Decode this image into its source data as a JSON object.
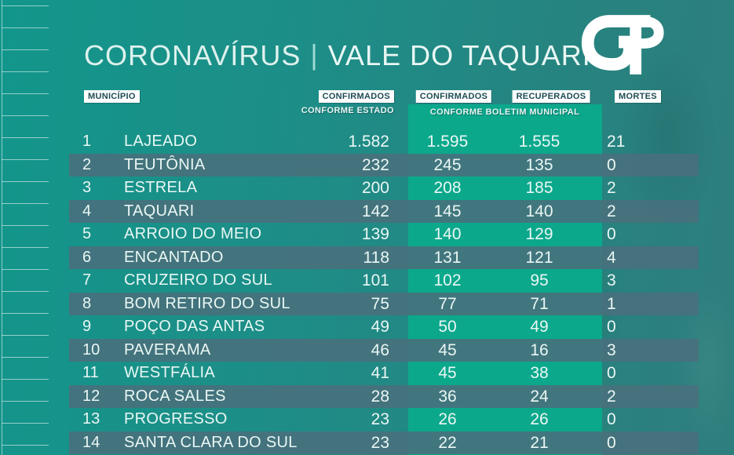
{
  "header": {
    "title_part1": "CORONAVÍRUS",
    "title_separator": "|",
    "title_part2": "VALE DO TAQUARI",
    "logo_text": "GP"
  },
  "table": {
    "col_municipio": "MUNICÍPIO",
    "col_confirmados_estado": "CONFIRMADOS",
    "sub_confirmados_estado": "CONFORME ESTADO",
    "col_confirmados_municipal": "CONFIRMADOS",
    "col_recuperados": "RECUPERADOS",
    "sub_boletim_municipal": "CONFORME BOLETIM MUNICIPAL",
    "col_mortes": "MORTES",
    "rows": [
      {
        "rank": "1",
        "municipio": "LAJEADO",
        "confirmados_estado": "1.582",
        "confirmados_municipal": "1.595",
        "recuperados": "1.555",
        "mortes": "21"
      },
      {
        "rank": "2",
        "municipio": "TEUTÔNIA",
        "confirmados_estado": "232",
        "confirmados_municipal": "245",
        "recuperados": "135",
        "mortes": "0"
      },
      {
        "rank": "3",
        "municipio": "ESTRELA",
        "confirmados_estado": "200",
        "confirmados_municipal": "208",
        "recuperados": "185",
        "mortes": "2"
      },
      {
        "rank": "4",
        "municipio": "TAQUARI",
        "confirmados_estado": "142",
        "confirmados_municipal": "145",
        "recuperados": "140",
        "mortes": "2"
      },
      {
        "rank": "5",
        "municipio": "ARROIO DO MEIO",
        "confirmados_estado": "139",
        "confirmados_municipal": "140",
        "recuperados": "129",
        "mortes": "0"
      },
      {
        "rank": "6",
        "municipio": "ENCANTADO",
        "confirmados_estado": "118",
        "confirmados_municipal": "131",
        "recuperados": "121",
        "mortes": "4"
      },
      {
        "rank": "7",
        "municipio": "CRUZEIRO DO SUL",
        "confirmados_estado": "101",
        "confirmados_municipal": "102",
        "recuperados": "95",
        "mortes": "3"
      },
      {
        "rank": "8",
        "municipio": "BOM RETIRO DO SUL",
        "confirmados_estado": "75",
        "confirmados_municipal": "77",
        "recuperados": "71",
        "mortes": "1"
      },
      {
        "rank": "9",
        "municipio": "POÇO DAS ANTAS",
        "confirmados_estado": "49",
        "confirmados_municipal": "50",
        "recuperados": "49",
        "mortes": "0"
      },
      {
        "rank": "10",
        "municipio": "PAVERAMA",
        "confirmados_estado": "46",
        "confirmados_municipal": "45",
        "recuperados": "16",
        "mortes": "3"
      },
      {
        "rank": "11",
        "municipio": "WESTFÁLIA",
        "confirmados_estado": "41",
        "confirmados_municipal": "45",
        "recuperados": "38",
        "mortes": "0"
      },
      {
        "rank": "12",
        "municipio": "ROCA SALES",
        "confirmados_estado": "28",
        "confirmados_municipal": "36",
        "recuperados": "24",
        "mortes": "2"
      },
      {
        "rank": "13",
        "municipio": "PROGRESSO",
        "confirmados_estado": "23",
        "confirmados_municipal": "26",
        "recuperados": "26",
        "mortes": "0"
      },
      {
        "rank": "14",
        "municipio": "SANTA CLARA DO SUL",
        "confirmados_estado": "23",
        "confirmados_municipal": "22",
        "recuperados": "21",
        "mortes": "0"
      }
    ]
  },
  "colors": {
    "background": "#1E8D87",
    "background_left": "#12968B",
    "background_right": "#2E7E7D",
    "municipal_band": "#0BA88C",
    "label_background": "#FFFFFF",
    "label_text": "#1C4C54",
    "text_light": "#EAF7F4",
    "title_text": "#DDF1ED",
    "separator": "#9FDCD6",
    "logo": "#FFFFFF"
  },
  "chart_data": {
    "type": "table",
    "title": "CORONAVÍRUS | VALE DO TAQUARI",
    "columns": [
      "MUNICÍPIO",
      "CONFIRMADOS CONFORME ESTADO",
      "CONFIRMADOS CONFORME BOLETIM MUNICIPAL",
      "RECUPERADOS CONFORME BOLETIM MUNICIPAL",
      "MORTES"
    ],
    "rows": [
      [
        "LAJEADO",
        1582,
        1595,
        1555,
        21
      ],
      [
        "TEUTÔNIA",
        232,
        245,
        135,
        0
      ],
      [
        "ESTRELA",
        200,
        208,
        185,
        2
      ],
      [
        "TAQUARI",
        142,
        145,
        140,
        2
      ],
      [
        "ARROIO DO MEIO",
        139,
        140,
        129,
        0
      ],
      [
        "ENCANTADO",
        118,
        131,
        121,
        4
      ],
      [
        "CRUZEIRO DO SUL",
        101,
        102,
        95,
        3
      ],
      [
        "BOM RETIRO DO SUL",
        75,
        77,
        71,
        1
      ],
      [
        "POÇO DAS ANTAS",
        49,
        50,
        49,
        0
      ],
      [
        "PAVERAMA",
        46,
        45,
        16,
        3
      ],
      [
        "WESTFÁLIA",
        41,
        45,
        38,
        0
      ],
      [
        "ROCA SALES",
        28,
        36,
        24,
        2
      ],
      [
        "PROGRESSO",
        23,
        26,
        26,
        0
      ],
      [
        "SANTA CLARA DO SUL",
        23,
        22,
        21,
        0
      ]
    ]
  }
}
